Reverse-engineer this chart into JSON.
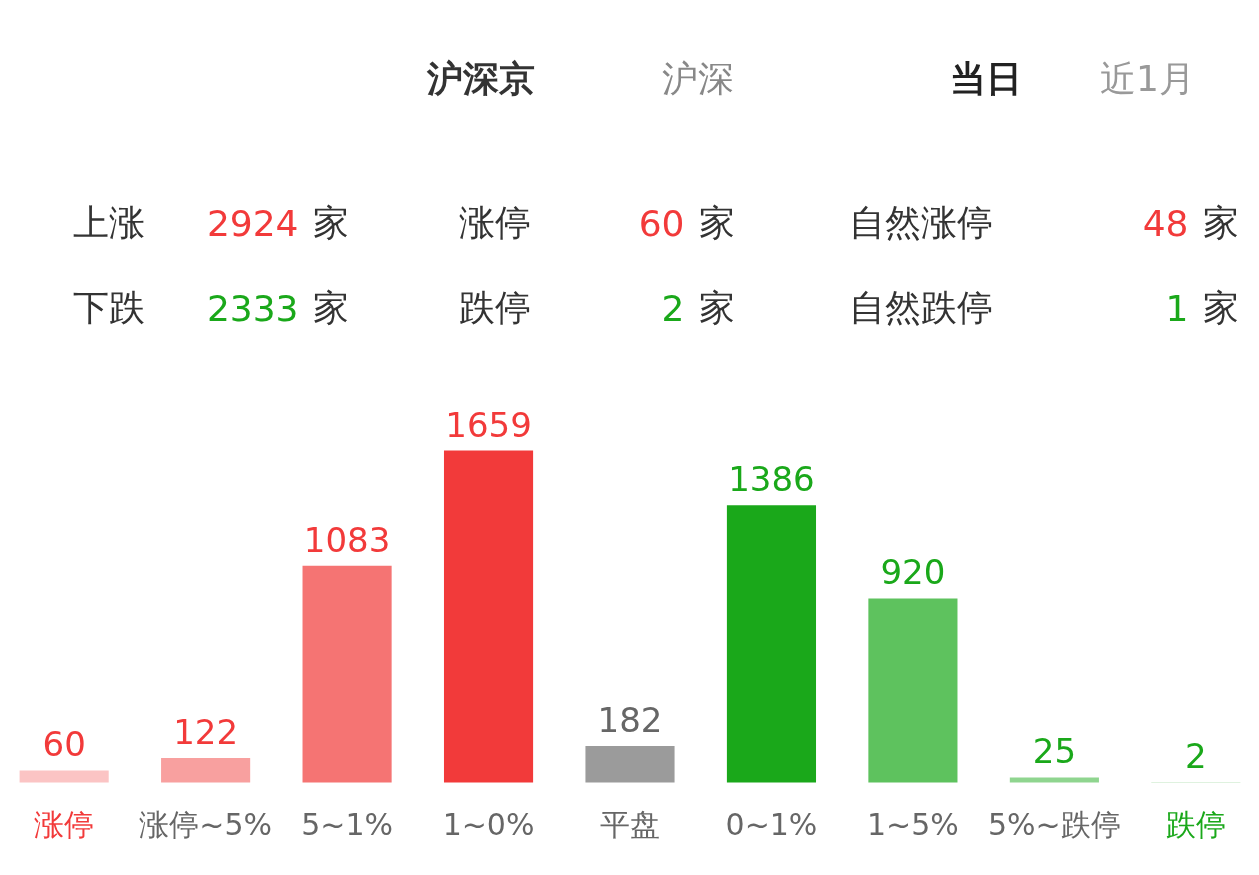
{
  "chart_data": {
    "type": "bar",
    "categories": [
      "涨停",
      "涨停~5%",
      "5~1%",
      "1~0%",
      "平盘",
      "0~1%",
      "1~5%",
      "5%~跌停",
      "跌停"
    ],
    "values": [
      60,
      122,
      1083,
      1659,
      182,
      1386,
      920,
      25,
      2
    ],
    "colors": [
      "#fbc4c4",
      "#f8a09f",
      "#f57473",
      "#f23a3a",
      "#9b9b9b",
      "#1aa81a",
      "#5ec25e",
      "#8fd58f",
      "#bfe6bf"
    ],
    "data_labels": true,
    "annotations": [
      "沪深京",
      "沪深",
      "当日",
      "近1月",
      "上涨 2924 家",
      "涨停 60 家",
      "自然涨停 48 家",
      "下跌 2333 家",
      "跌停 2 家",
      "自然跌停 1 家"
    ]
  }
}
